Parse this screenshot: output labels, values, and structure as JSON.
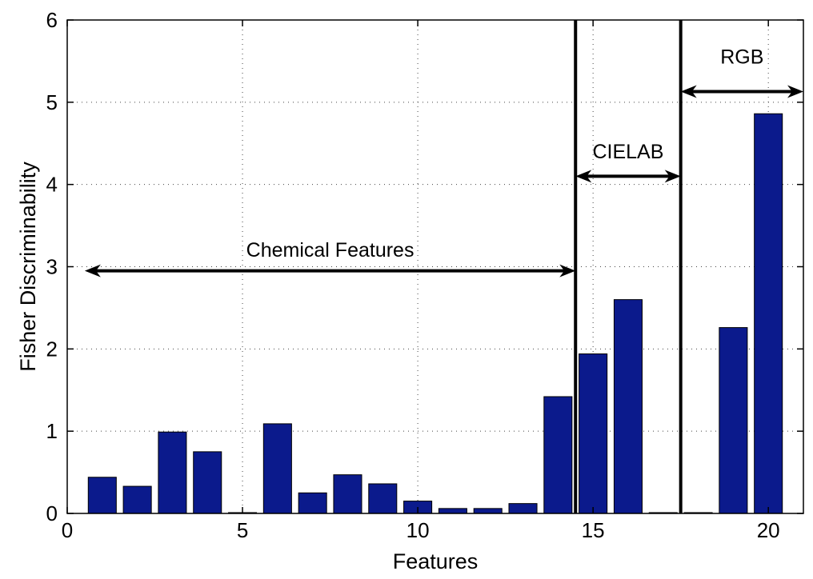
{
  "chart_data": {
    "type": "bar",
    "xlabel": "Features",
    "ylabel": "Fisher Discriminability",
    "xlim": [
      0,
      21
    ],
    "ylim": [
      0,
      6
    ],
    "xticks": [
      0,
      5,
      10,
      15,
      20
    ],
    "yticks": [
      0,
      1,
      2,
      3,
      4,
      5,
      6
    ],
    "grid": true,
    "bar_color": "#0b1a8c",
    "x": [
      1,
      2,
      3,
      4,
      5,
      6,
      7,
      8,
      9,
      10,
      11,
      12,
      13,
      14,
      15,
      16,
      17,
      18,
      19,
      20
    ],
    "values": [
      0.44,
      0.33,
      0.99,
      0.75,
      0.01,
      1.09,
      0.25,
      0.47,
      0.36,
      0.15,
      0.06,
      0.06,
      0.12,
      1.42,
      1.94,
      2.6,
      0.01,
      0.01,
      2.26,
      4.86
    ],
    "separators": [
      14.5,
      17.5
    ],
    "annotations": [
      {
        "text": "Chemical Features",
        "x_from": 0.5,
        "x_to": 14.5,
        "y": 2.95,
        "text_y": 3.12
      },
      {
        "text": "CIELAB",
        "x_from": 14.5,
        "x_to": 17.5,
        "y": 4.1,
        "text_y": 4.32
      },
      {
        "text": "RGB",
        "x_from": 17.5,
        "x_to": 21,
        "y": 5.13,
        "text_y": 5.47
      }
    ]
  }
}
